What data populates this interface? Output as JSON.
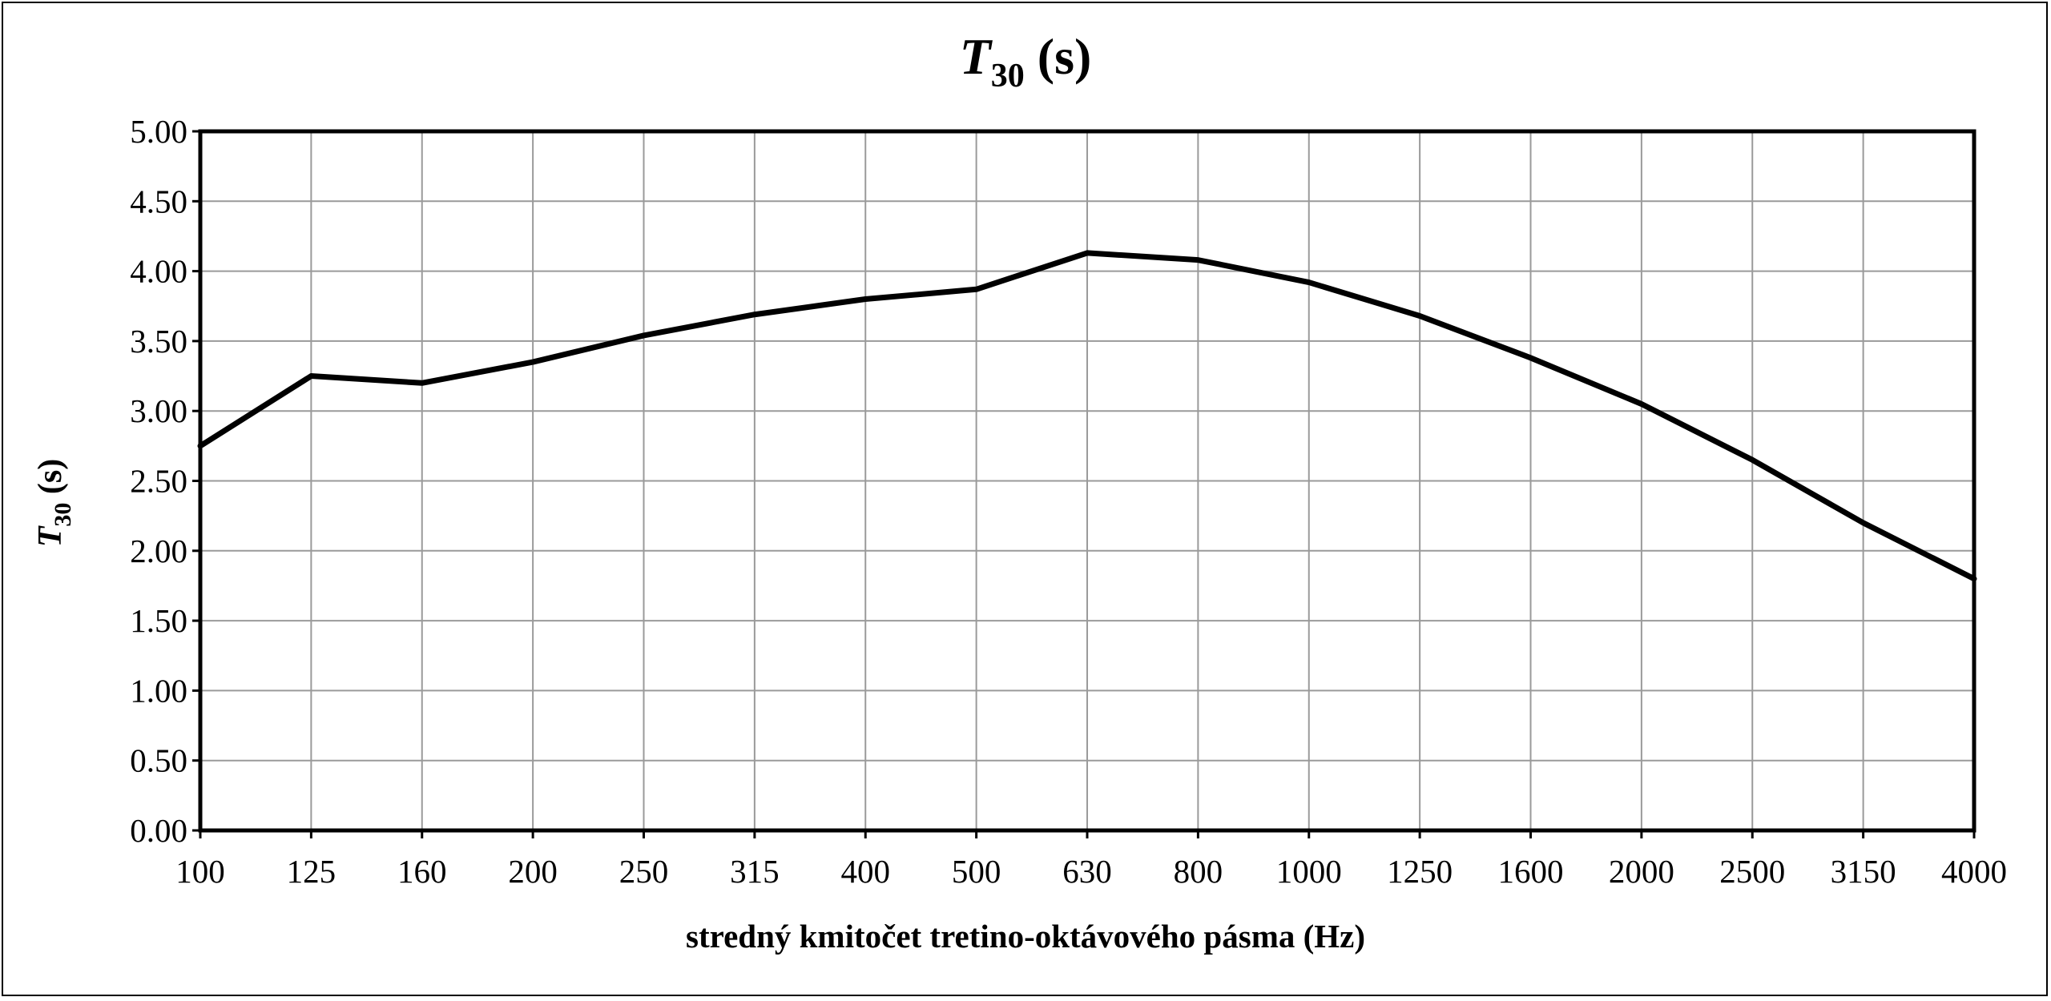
{
  "chart_data": {
    "type": "line",
    "title": {
      "main": "T",
      "sub": "30",
      "rest": " (s)"
    },
    "ylabel": {
      "main": "T",
      "sub": "30",
      "rest": " (s)"
    },
    "xlabel": "stredný kmitočet tretino-oktávového pásma (Hz)",
    "categories": [
      "100",
      "125",
      "160",
      "200",
      "250",
      "315",
      "400",
      "500",
      "630",
      "800",
      "1000",
      "1250",
      "1600",
      "2000",
      "2500",
      "3150",
      "4000"
    ],
    "series": [
      {
        "values": [
          2.75,
          3.25,
          3.2,
          3.35,
          3.54,
          3.69,
          3.8,
          3.87,
          4.13,
          4.08,
          3.92,
          3.68,
          3.38,
          3.05,
          2.65,
          2.2,
          1.8
        ]
      }
    ],
    "ylim": [
      0,
      5
    ],
    "yticks": [
      "0.00",
      "0.50",
      "1.00",
      "1.50",
      "2.00",
      "2.50",
      "3.00",
      "3.50",
      "4.00",
      "4.50",
      "5.00"
    ],
    "grid": true,
    "line_color": "#000000",
    "grid_color": "#9a9a9a"
  }
}
